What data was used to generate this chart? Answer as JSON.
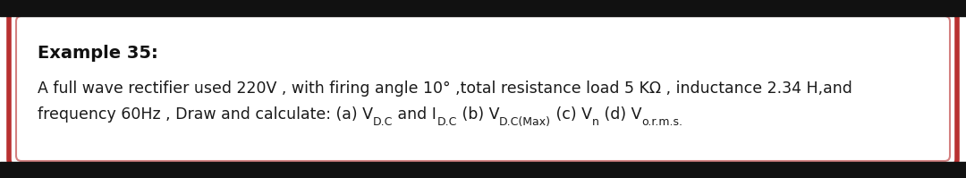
{
  "title": "Example 35:",
  "line1": "A full wave rectifier used 220V , with firing angle 10° ,total resistance load 5 KΩ , inductance 2.34 H,and",
  "bg_color": "#ffffff",
  "outer_border_color": "#b83030",
  "inner_border_color": "#d48080",
  "text_color": "#1a1a1a",
  "title_color": "#111111",
  "font_size_title": 14,
  "font_size_body": 12.5,
  "top_bar_color": "#111111",
  "bottom_bar_color": "#111111",
  "segments": [
    [
      "frequency 60Hz , Draw and calculate: (a) V",
      false
    ],
    [
      "D.C",
      true
    ],
    [
      " and I",
      false
    ],
    [
      "D.C",
      true
    ],
    [
      " (b) V",
      false
    ],
    [
      "D.C(Max)",
      true
    ],
    [
      " (c) V",
      false
    ],
    [
      "n",
      true
    ],
    [
      " (d) V",
      false
    ],
    [
      "o.r.m.s.",
      true
    ]
  ]
}
